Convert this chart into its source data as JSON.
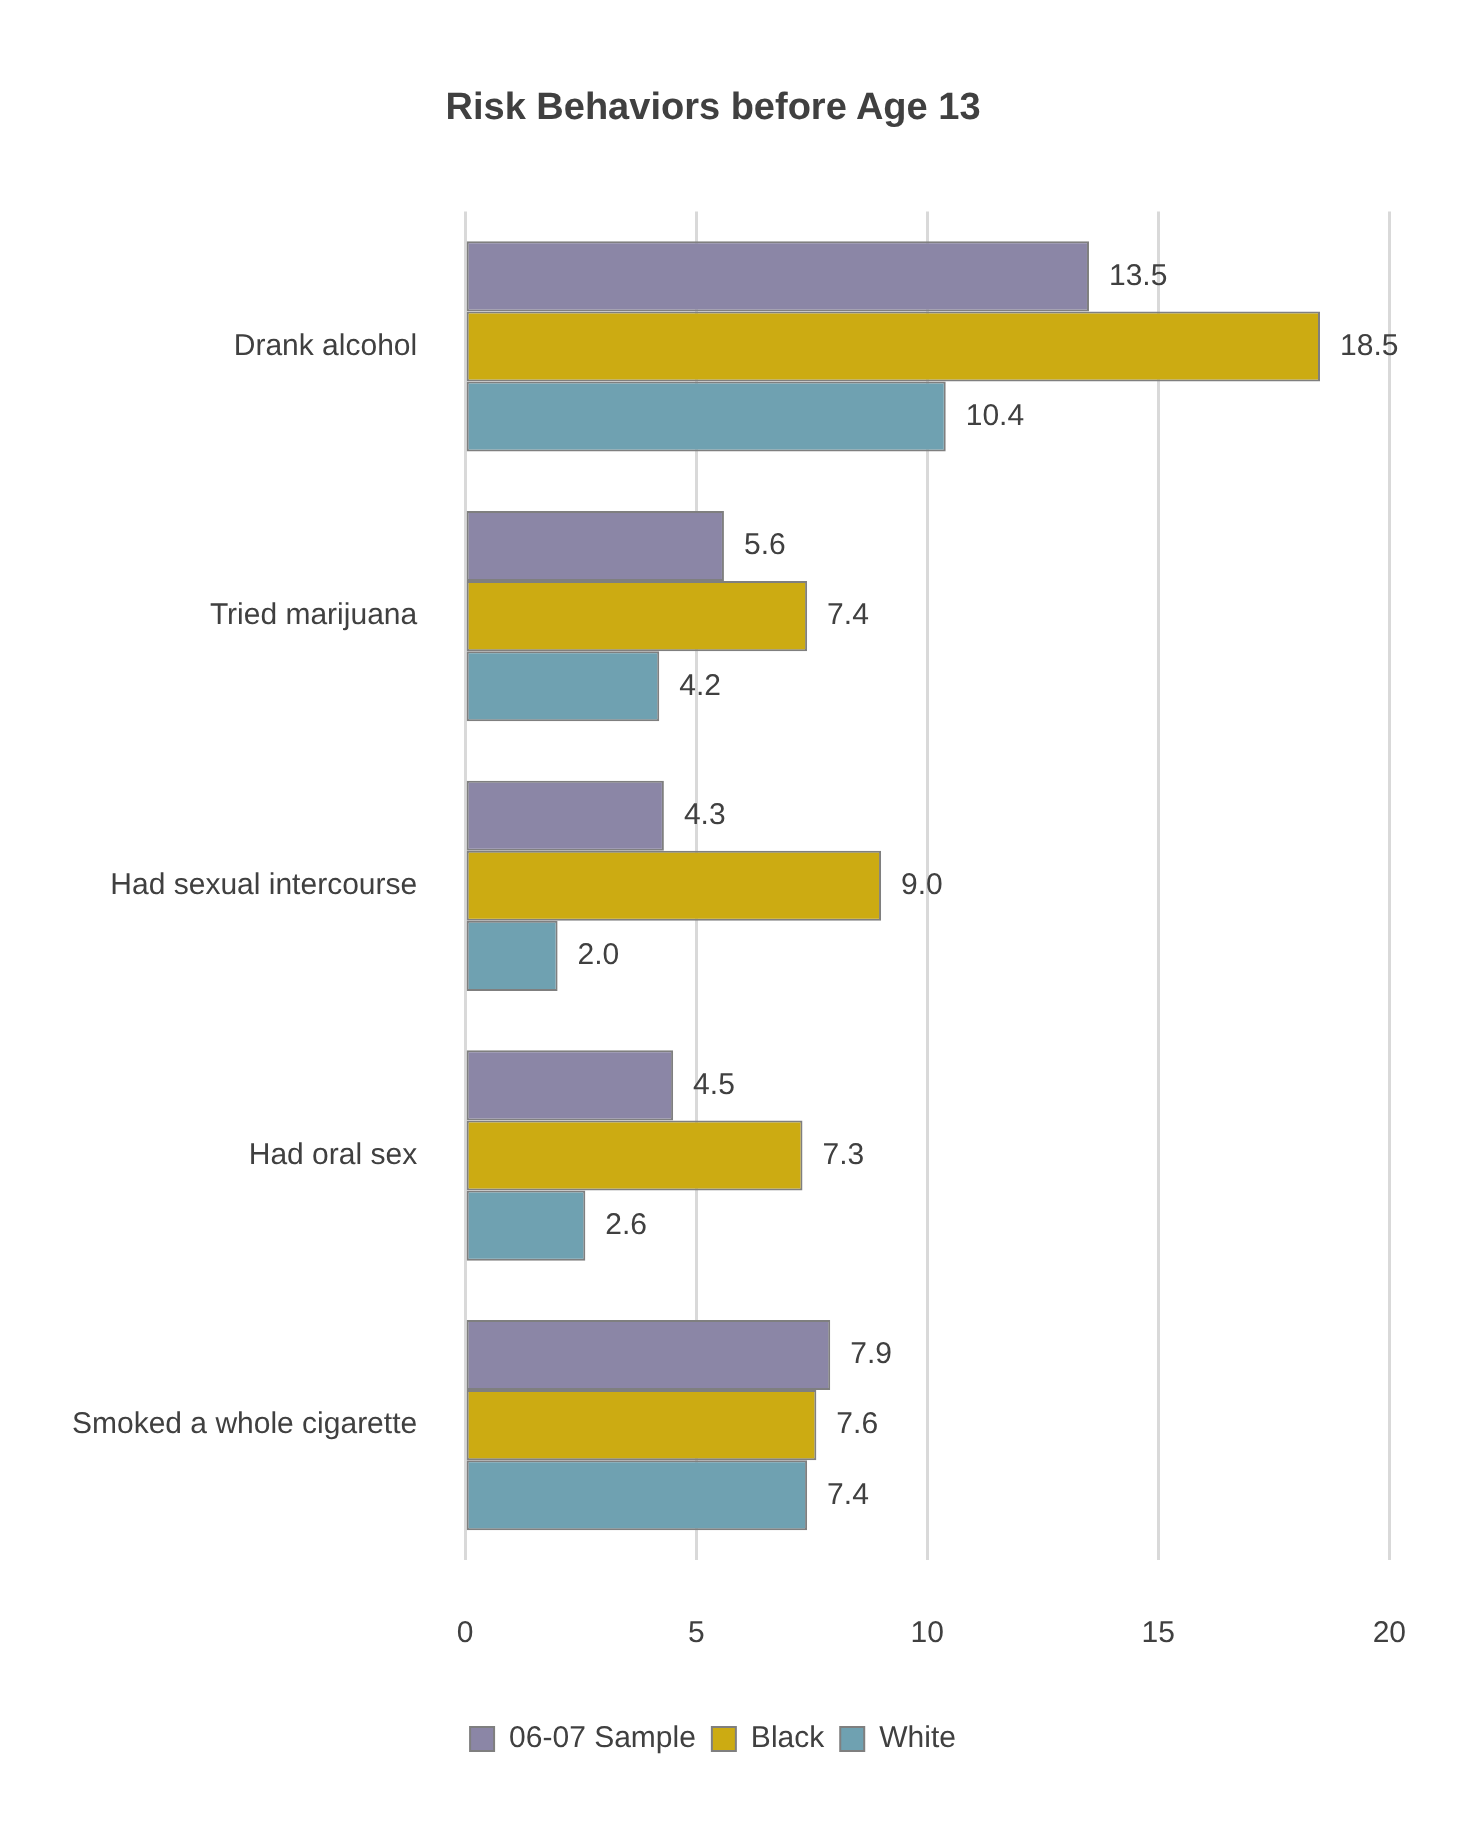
{
  "chart_data": {
    "type": "bar",
    "orientation": "horizontal",
    "title": "Risk Behaviors before Age 13",
    "categories": [
      "Drank alcohol",
      "Tried marijuana",
      "Had sexual intercourse",
      "Had oral sex",
      "Smoked a whole cigarette"
    ],
    "series": [
      {
        "name": "06-07 Sample",
        "color": "#8b86a6",
        "values": [
          13.5,
          5.6,
          4.3,
          4.5,
          7.9
        ],
        "value_labels": [
          "13.5",
          "5.6",
          "4.3",
          "4.5",
          "7.9"
        ]
      },
      {
        "name": "Black",
        "color": "#ccab12",
        "values": [
          18.5,
          7.4,
          9.0,
          7.3,
          7.6
        ],
        "value_labels": [
          "18.5",
          "7.4",
          "9.0",
          "7.3",
          "7.6"
        ]
      },
      {
        "name": "White",
        "color": "#6fa1b1",
        "values": [
          10.4,
          4.2,
          2.0,
          2.6,
          7.4
        ],
        "value_labels": [
          "10.4",
          "4.2",
          "2.0",
          "2.6",
          "7.4"
        ]
      }
    ],
    "xlim": [
      0,
      20
    ],
    "xticks": [
      0,
      5,
      10,
      15,
      20
    ],
    "grid": "x",
    "legend": "bottom"
  }
}
